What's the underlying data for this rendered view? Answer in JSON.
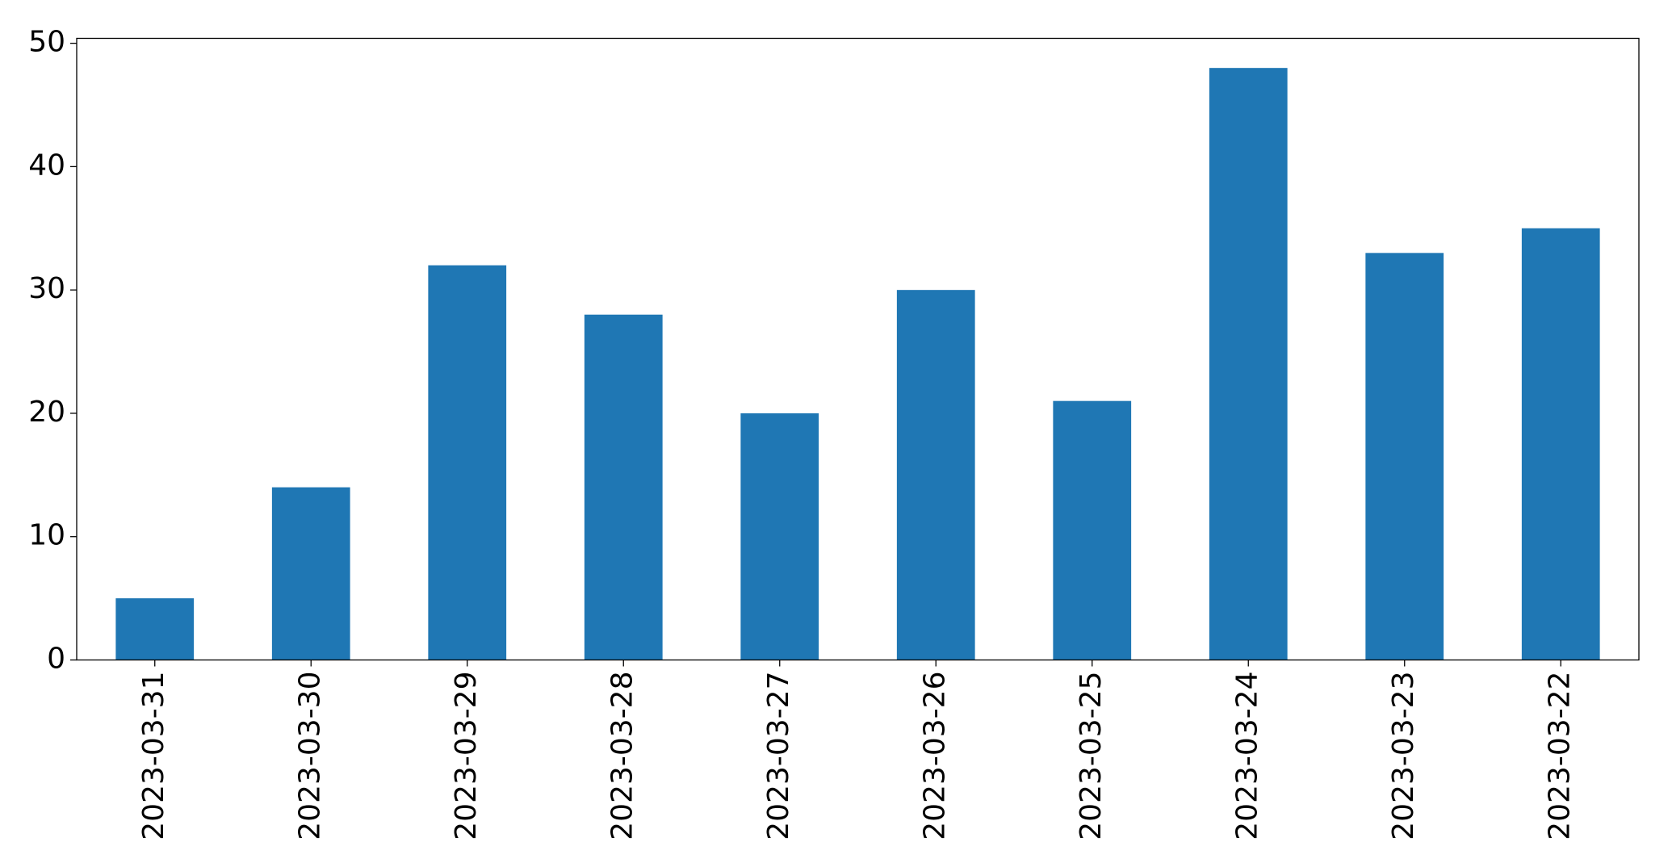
{
  "chart_data": {
    "type": "bar",
    "categories": [
      "2023-03-31",
      "2023-03-30",
      "2023-03-29",
      "2023-03-28",
      "2023-03-27",
      "2023-03-26",
      "2023-03-25",
      "2023-03-24",
      "2023-03-23",
      "2023-03-22"
    ],
    "values": [
      5,
      14,
      32,
      28,
      20,
      30,
      21,
      48,
      33,
      35
    ],
    "color": "#1f77b4",
    "ylim": [
      0,
      50.4
    ],
    "yticks": [
      0,
      10,
      20,
      30,
      40,
      50
    ],
    "grid": false
  }
}
